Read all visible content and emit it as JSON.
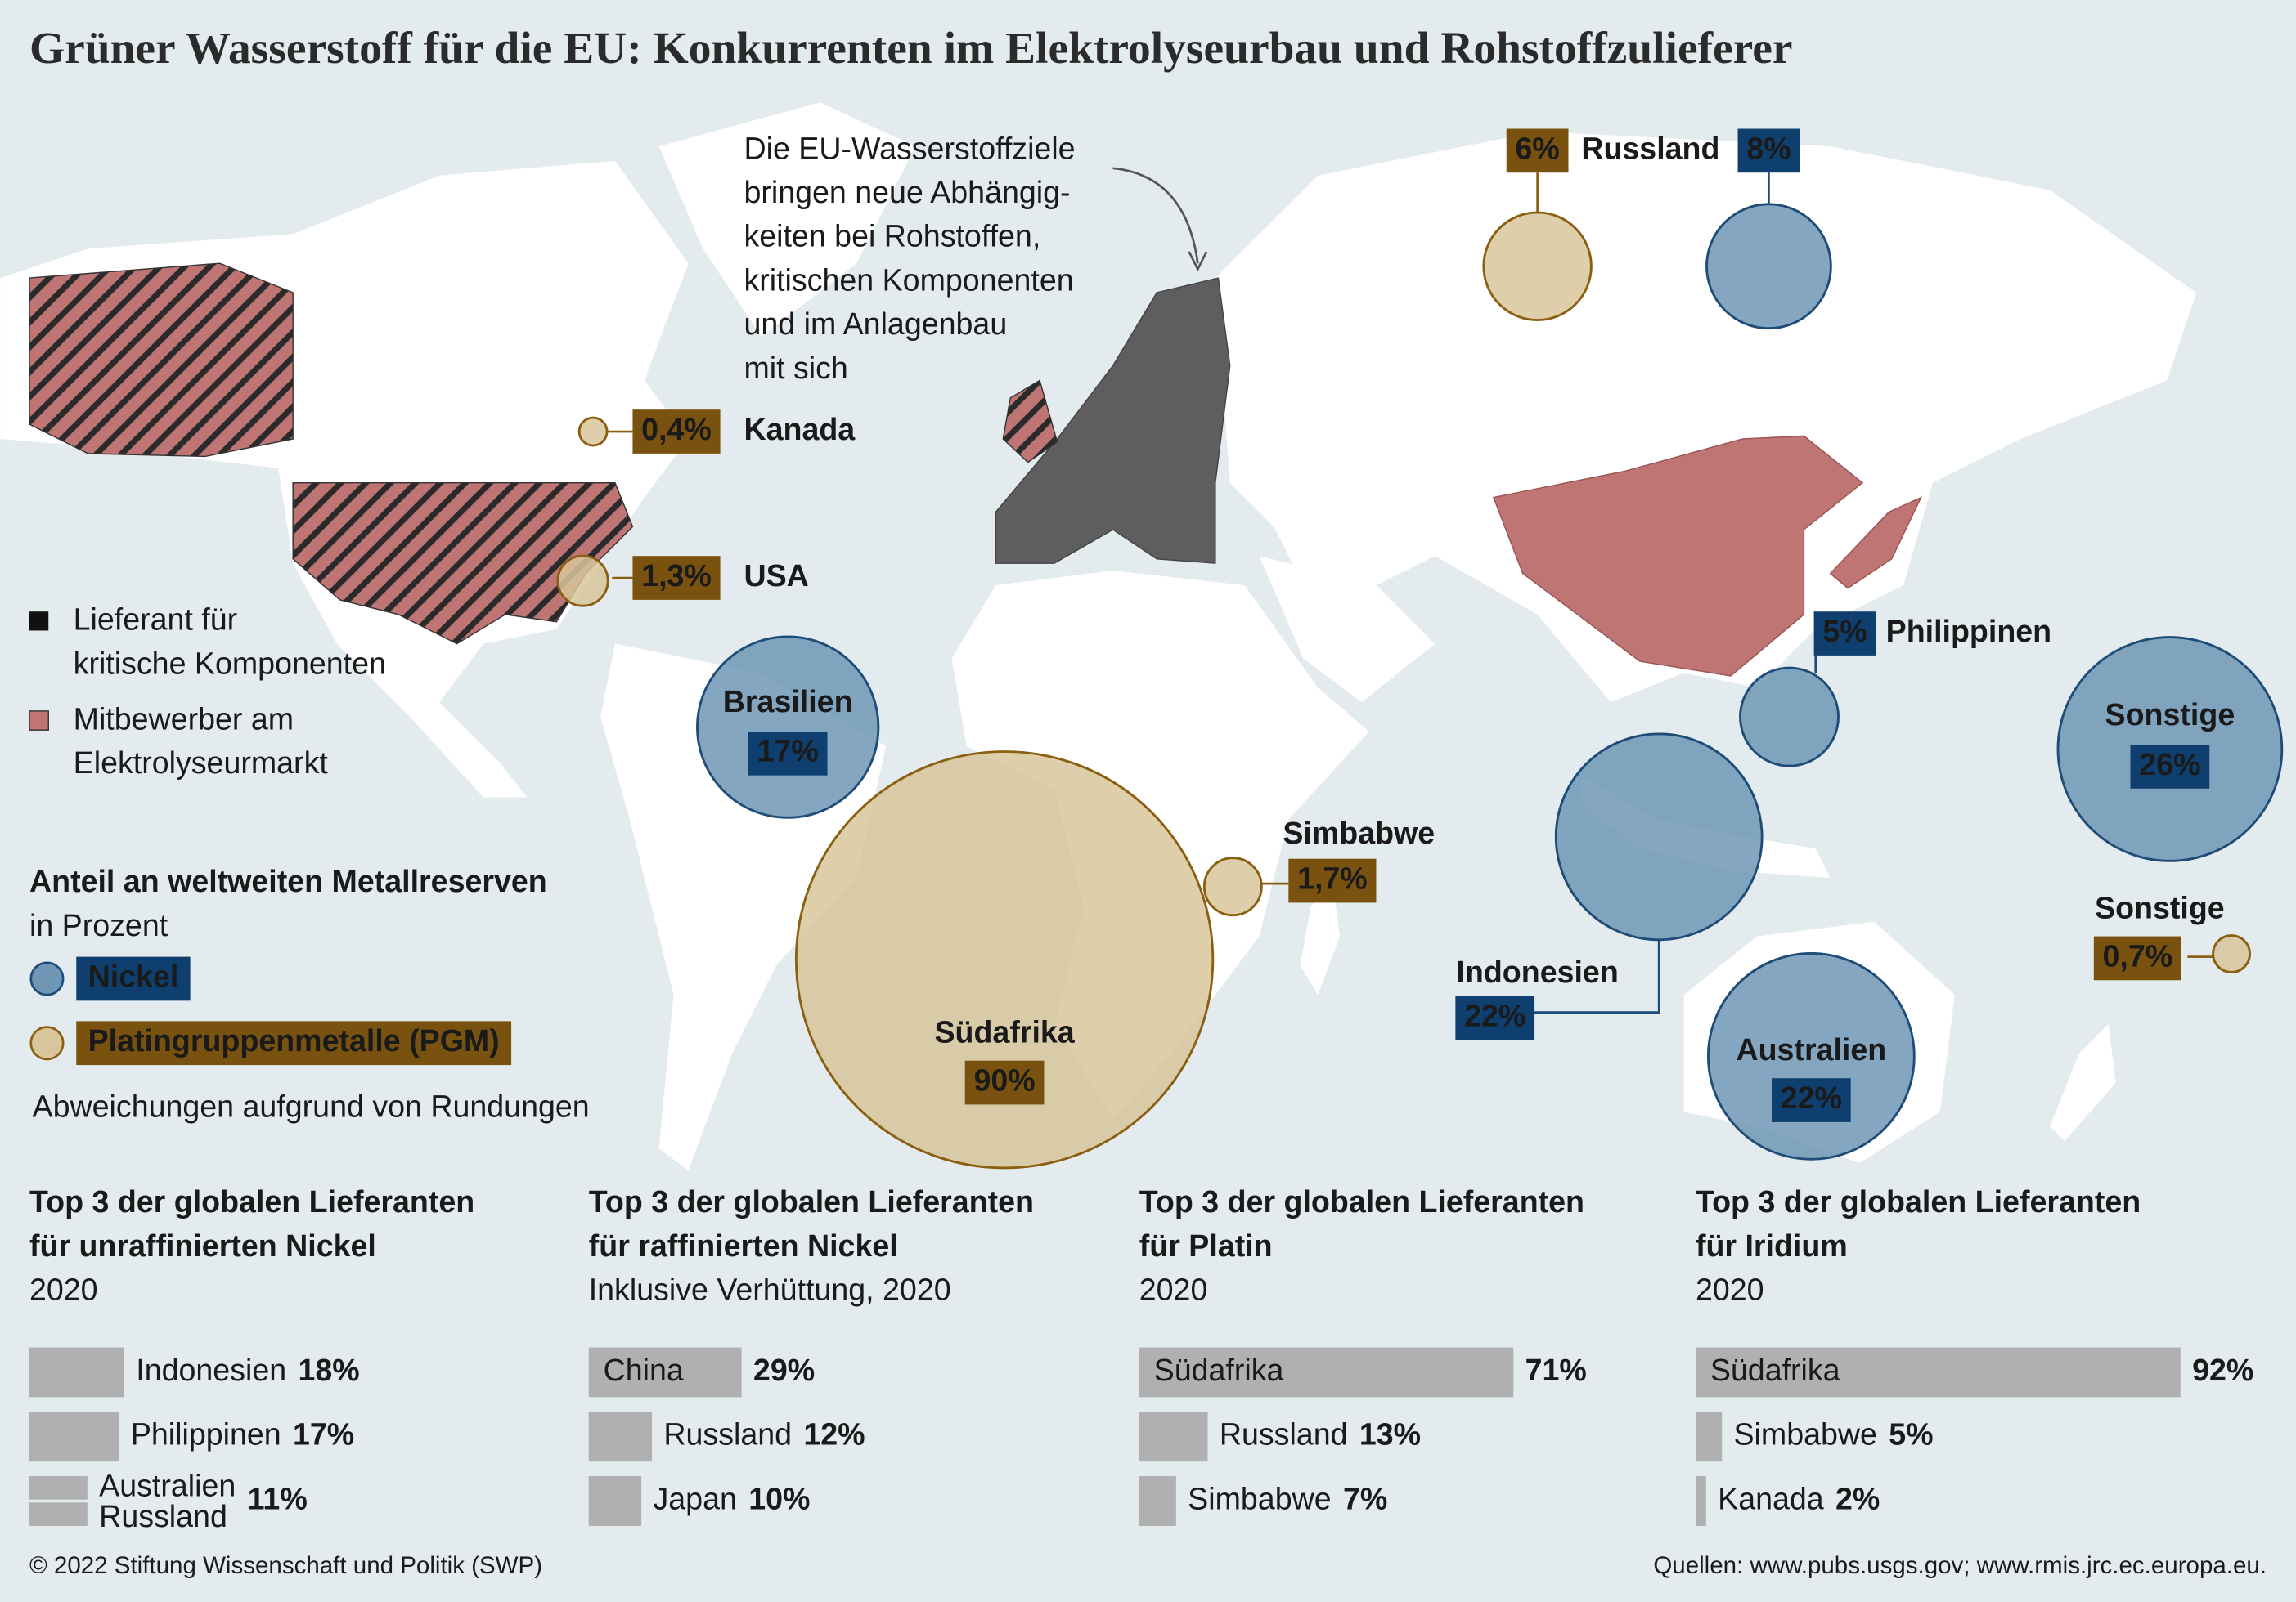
{
  "title": "Grüner Wasserstoff für die EU: Konkurrenten im Elektrolyseurbau und Rohstoffzulieferer",
  "annotation": [
    "Die EU-Wasserstoffziele",
    "bringen neue Abhängig-",
    "keiten bei Rohstoffen,",
    "kritischen Komponenten",
    "und im Anlagenbau",
    "mit sich"
  ],
  "legend": {
    "supplier": [
      "Lieferant für",
      "kritische Komponenten"
    ],
    "competitor": [
      "Mitbewerber am",
      "Elektrolyseurmarkt"
    ]
  },
  "metal_legend": {
    "heading": "Anteil an weltweiten Metallreserven",
    "subheading": "in Prozent",
    "nickel": "Nickel",
    "pgm": "Platingruppenmetalle (PGM)",
    "note": "Abweichungen aufgrund von Rundungen"
  },
  "bubbles": [
    {
      "label": "Kanada",
      "metal": "pgm",
      "value": 0.4,
      "value_label": "0,4%"
    },
    {
      "label": "USA",
      "metal": "pgm",
      "value": 1.3,
      "value_label": "1,3%"
    },
    {
      "label": "Brasilien",
      "metal": "nickel",
      "value": 17,
      "value_label": "17%"
    },
    {
      "label": "Südafrika",
      "metal": "pgm",
      "value": 90,
      "value_label": "90%"
    },
    {
      "label": "Simbabwe",
      "metal": "pgm",
      "value": 1.7,
      "value_label": "1,7%"
    },
    {
      "label": "Russland",
      "metal": "pgm",
      "value": 6,
      "value_label": "6%"
    },
    {
      "metal": "nickel",
      "value": 8,
      "value_label": "8%"
    },
    {
      "label": "Philippinen",
      "metal": "nickel",
      "value": 5,
      "value_label": "5%"
    },
    {
      "label": "Indonesien",
      "metal": "nickel",
      "value": 22,
      "value_label": "22%"
    },
    {
      "label": "Australien",
      "metal": "nickel",
      "value": 22,
      "value_label": "22%"
    },
    {
      "label": "Sonstige",
      "metal": "nickel",
      "value": 26,
      "value_label": "26%"
    },
    {
      "label": "Sonstige",
      "metal": "pgm",
      "value": 0.7,
      "value_label": "0,7%"
    }
  ],
  "panels": [
    {
      "title": [
        "Top 3 der globalen Lieferanten",
        "für unraffinierten Nickel"
      ],
      "subtitle": "2020",
      "bars": [
        {
          "label": "Indonesien",
          "value": 18,
          "value_label": "18%"
        },
        {
          "label": "Philippinen",
          "value": 17,
          "value_label": "17%"
        },
        {
          "labels": [
            "Australien",
            "Russland"
          ],
          "value": 11,
          "value_label": "11%"
        }
      ]
    },
    {
      "title": [
        "Top 3 der globalen Lieferanten",
        "für raffinierten Nickel"
      ],
      "subtitle": "Inklusive Verhüttung, 2020",
      "bars": [
        {
          "label": "China",
          "value": 29,
          "value_label": "29%"
        },
        {
          "label": "Russland",
          "value": 12,
          "value_label": "12%"
        },
        {
          "label": "Japan",
          "value": 10,
          "value_label": "10%"
        }
      ]
    },
    {
      "title": [
        "Top 3 der globalen Lieferanten",
        "für Platin"
      ],
      "subtitle": "2020",
      "bars": [
        {
          "label": "Südafrika",
          "value": 71,
          "value_label": "71%"
        },
        {
          "label": "Russland",
          "value": 13,
          "value_label": "13%"
        },
        {
          "label": "Simbabwe",
          "value": 7,
          "value_label": "7%"
        }
      ]
    },
    {
      "title": [
        "Top 3 der globalen Lieferanten",
        "für Iridium"
      ],
      "subtitle": "2020",
      "bars": [
        {
          "label": "Südafrika",
          "value": 92,
          "value_label": "92%"
        },
        {
          "label": "Simbabwe",
          "value": 5,
          "value_label": "5%"
        },
        {
          "label": "Kanada",
          "value": 2,
          "value_label": "2%"
        }
      ]
    }
  ],
  "footer": {
    "copyright": "© 2022 Stiftung Wissenschaft und Politik (SWP)",
    "sources": "Quellen: www.pubs.usgs.gov; www.rmis.jrc.ec.europa.eu."
  }
}
